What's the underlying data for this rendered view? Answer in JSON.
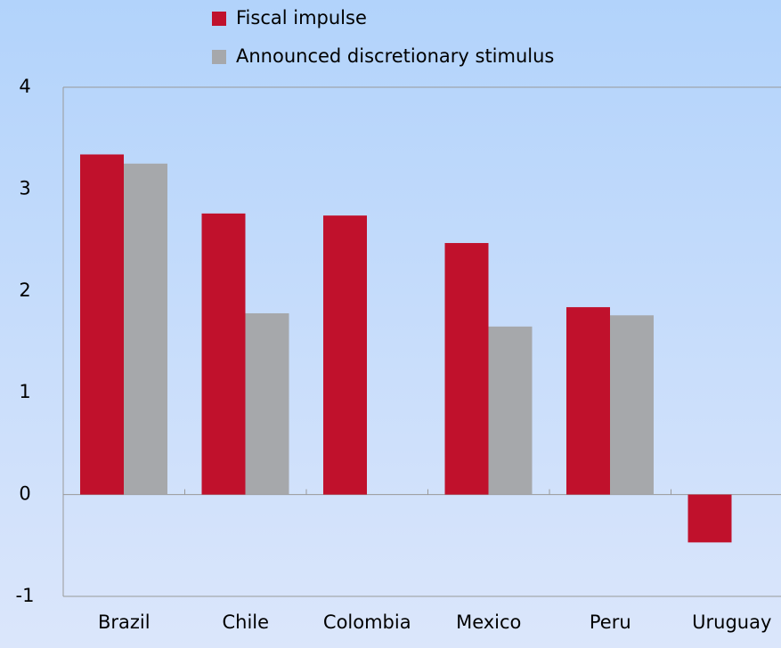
{
  "chart_data": {
    "type": "bar",
    "categories": [
      "Brazil",
      "Chile",
      "Colombia",
      "Mexico",
      "Peru",
      "Uruguay"
    ],
    "series": [
      {
        "name": "Fiscal impulse",
        "color": "#c0112c",
        "values": [
          3.34,
          2.76,
          2.74,
          2.47,
          1.84,
          -0.47
        ]
      },
      {
        "name": "Announced discretionary stimulus",
        "color": "#a6a8ab",
        "values": [
          3.25,
          1.78,
          null,
          1.65,
          1.76,
          null
        ]
      }
    ],
    "ylim": [
      -1,
      4
    ],
    "yticks": [
      -1,
      0,
      1,
      2,
      3,
      4
    ],
    "grid": false,
    "legend": "top"
  }
}
